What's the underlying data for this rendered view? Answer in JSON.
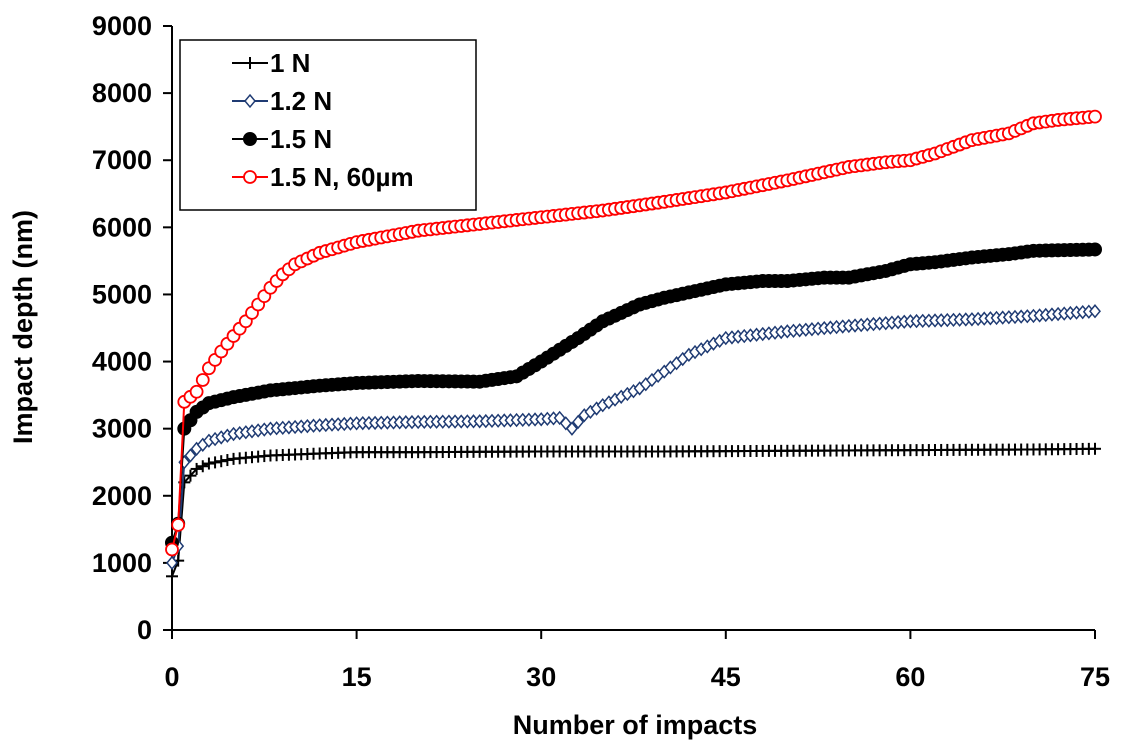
{
  "chart_data": {
    "type": "line",
    "title": "",
    "xlabel": "Number of impacts",
    "ylabel": "Impact depth (nm)",
    "xlim": [
      0,
      75
    ],
    "ylim": [
      0,
      9000
    ],
    "xticks": [
      0,
      15,
      30,
      45,
      60,
      75
    ],
    "yticks": [
      0,
      1000,
      2000,
      3000,
      4000,
      5000,
      6000,
      7000,
      8000,
      9000
    ],
    "grid": false,
    "legend_position": "top-left",
    "series": [
      {
        "name": "1 N",
        "color": "#000000",
        "marker": "plus",
        "x": [
          0,
          0.4,
          1,
          2,
          3,
          5,
          8,
          12,
          15,
          20,
          30,
          40,
          50,
          60,
          70,
          75
        ],
        "y": [
          800,
          800,
          2200,
          2400,
          2480,
          2550,
          2600,
          2630,
          2650,
          2650,
          2660,
          2660,
          2670,
          2680,
          2690,
          2700
        ]
      },
      {
        "name": "1.2 N",
        "color": "#1f3b73",
        "marker": "diamond",
        "x": [
          0,
          0.4,
          1,
          2,
          3,
          5,
          8,
          12,
          15,
          20,
          25,
          30,
          31.5,
          32.5,
          33.5,
          35,
          38,
          40,
          42,
          45,
          50,
          55,
          60,
          65,
          70,
          75
        ],
        "y": [
          1000,
          1000,
          2500,
          2700,
          2820,
          2920,
          3000,
          3050,
          3080,
          3100,
          3110,
          3140,
          3160,
          3000,
          3200,
          3350,
          3600,
          3850,
          4100,
          4350,
          4450,
          4530,
          4600,
          4630,
          4680,
          4750
        ]
      },
      {
        "name": "1.5 N",
        "color": "#000000",
        "marker": "circle",
        "x": [
          0,
          0.4,
          1,
          2,
          3,
          5,
          8,
          12,
          15,
          20,
          25,
          28,
          30,
          33,
          35,
          38,
          40,
          45,
          48,
          50,
          53,
          55,
          58,
          60,
          62,
          65,
          68,
          70,
          75
        ],
        "y": [
          1300,
          1300,
          3000,
          3250,
          3380,
          3470,
          3570,
          3640,
          3680,
          3710,
          3700,
          3780,
          4000,
          4350,
          4600,
          4850,
          4950,
          5150,
          5200,
          5200,
          5250,
          5250,
          5350,
          5450,
          5480,
          5550,
          5600,
          5650,
          5670
        ]
      },
      {
        "name": "1.5 N, 60µm",
        "color": "#ff0000",
        "marker": "circle-open",
        "x": [
          0,
          0.4,
          1,
          2,
          3,
          4,
          5,
          6,
          7,
          8,
          9,
          10,
          12,
          15,
          20,
          25,
          30,
          35,
          40,
          45,
          50,
          55,
          58,
          60,
          62,
          65,
          68,
          70,
          72,
          75
        ],
        "y": [
          1200,
          1200,
          3400,
          3550,
          3900,
          4150,
          4380,
          4600,
          4850,
          5100,
          5300,
          5450,
          5620,
          5780,
          5950,
          6050,
          6150,
          6250,
          6380,
          6520,
          6700,
          6900,
          6970,
          7000,
          7100,
          7300,
          7400,
          7550,
          7600,
          7650
        ]
      }
    ]
  }
}
